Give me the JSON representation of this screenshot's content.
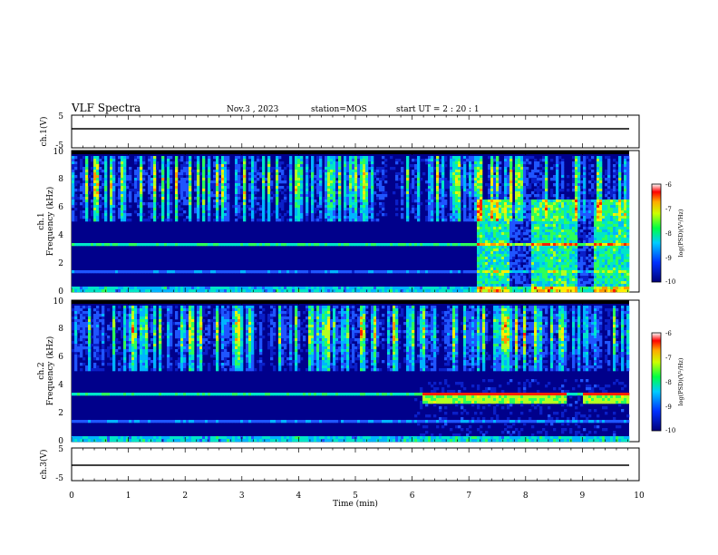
{
  "header": {
    "title": "VLF Spectra",
    "date": "Nov.3 , 2023",
    "station": "station=MOS",
    "start_ut": "start UT =  2 : 20 : 1"
  },
  "chart_data": [
    {
      "type": "line",
      "name": "ch1-waveform",
      "ylabel": "ch.1(V)",
      "ylim": [
        -5,
        5
      ],
      "y_ticks": [
        "5",
        "-5"
      ],
      "series": [
        {
          "x": [
            0,
            9.83
          ],
          "y": [
            0,
            0
          ]
        }
      ]
    },
    {
      "type": "heatmap",
      "name": "ch1-spectrogram",
      "ylabel": "ch.1\nFrequency (kHz)",
      "ylim": [
        0,
        10
      ],
      "y_ticks": [
        "0",
        "2",
        "4",
        "6",
        "8",
        "10"
      ],
      "colorbar": {
        "label": "log(PSD)(V²/Hz)",
        "range": [
          -10,
          -6
        ],
        "ticks": [
          "-6",
          "-7",
          "-8",
          "-9",
          "-10"
        ]
      }
    },
    {
      "type": "heatmap",
      "name": "ch2-spectrogram",
      "ylabel": "ch.2\nFrequency (kHz)",
      "ylim": [
        0,
        10
      ],
      "y_ticks": [
        "0",
        "2",
        "4",
        "6",
        "8",
        "10"
      ],
      "colorbar": {
        "label": "log(PSD)(V²/Hz)",
        "range": [
          -10,
          -6
        ],
        "ticks": [
          "-6",
          "-7",
          "-8",
          "-9",
          "-10"
        ]
      }
    },
    {
      "type": "line",
      "name": "ch3-waveform",
      "ylabel": "ch.3(V)",
      "ylim": [
        -5,
        5
      ],
      "y_ticks": [
        "5",
        "-5"
      ],
      "series": [
        {
          "x": [
            0,
            9.83
          ],
          "y": [
            0,
            0
          ]
        }
      ]
    }
  ],
  "x_axis": {
    "label": "Time (min)",
    "range": [
      0,
      10
    ],
    "ticks": [
      "0",
      "1",
      "2",
      "3",
      "4",
      "5",
      "6",
      "7",
      "8",
      "9",
      "10"
    ]
  },
  "colors": {
    "background": "#000000",
    "low": "#00008b",
    "mid_low": "#1a44d8",
    "mid": "#00c8ff",
    "mid_high": "#33ff66",
    "high": "#ffff00",
    "peak": "#ff2200"
  }
}
